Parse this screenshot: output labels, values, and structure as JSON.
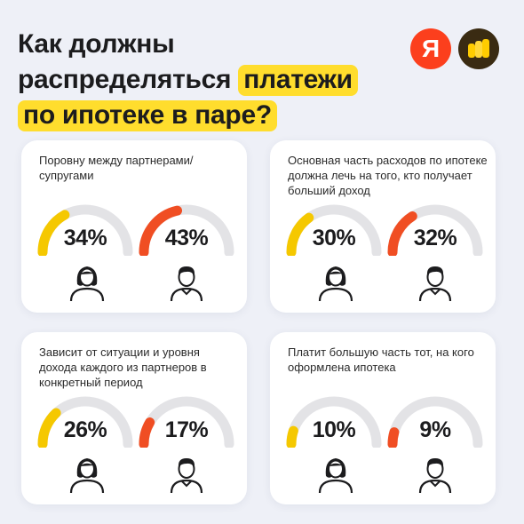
{
  "header": {
    "title_line1": "Как должны",
    "title_line2_prefix": "распределяться",
    "title_line2_highlight": "платежи",
    "title_line3_highlight": "по ипотеке в паре?",
    "logo_yandex": "Я"
  },
  "colors": {
    "women": "#f5c800",
    "men": "#f04e23",
    "track": "#e3e3e6",
    "highlight": "#ffdd2d"
  },
  "chart_data": [
    {
      "type": "gauge",
      "title": "Поровну между партнерами/супругами",
      "series": [
        {
          "group": "women",
          "value": 34,
          "label": "34%"
        },
        {
          "group": "men",
          "value": 43,
          "label": "43%"
        }
      ]
    },
    {
      "type": "gauge",
      "title": "Основная часть расходов по ипотеке должна лечь на того, кто получает больший доход",
      "series": [
        {
          "group": "women",
          "value": 30,
          "label": "30%"
        },
        {
          "group": "men",
          "value": 32,
          "label": "32%"
        }
      ]
    },
    {
      "type": "gauge",
      "title": "Зависит от ситуации и уровня дохода каждого из партнеров в конкретный период",
      "series": [
        {
          "group": "women",
          "value": 26,
          "label": "26%"
        },
        {
          "group": "men",
          "value": 17,
          "label": "17%"
        }
      ]
    },
    {
      "type": "gauge",
      "title": "Платит большую часть тот, на кого оформлена ипотека",
      "series": [
        {
          "group": "women",
          "value": 10,
          "label": "10%"
        },
        {
          "group": "men",
          "value": 9,
          "label": "9%"
        }
      ]
    }
  ]
}
